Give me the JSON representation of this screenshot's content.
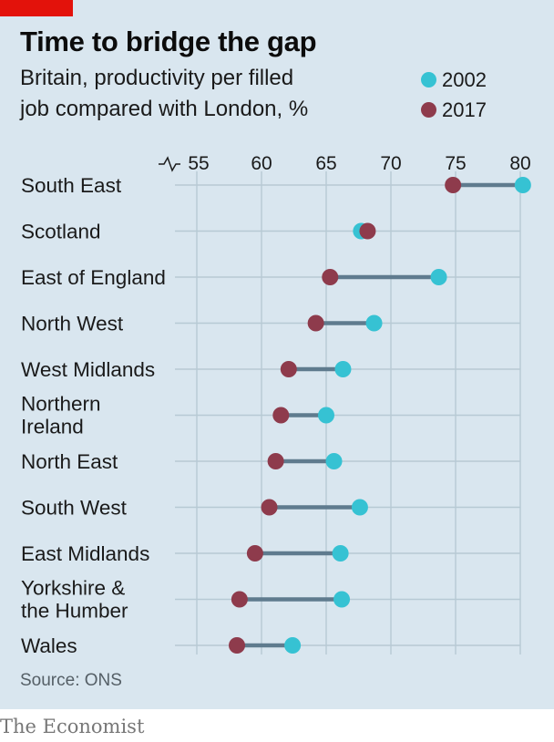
{
  "title": "Time to bridge the gap",
  "subtitle_line1": "Britain, productivity per filled",
  "subtitle_line2": "job compared with London, %",
  "source": "Source: ONS",
  "brand": "The Economist",
  "colors": {
    "background": "#d9e6ef",
    "brand_red": "#e3120b",
    "series_2002": "#36c2d3",
    "series_2017": "#8e3b4c",
    "connector": "#5f7b8e",
    "grid": "#b7c9d4"
  },
  "chart_data": {
    "type": "scatter",
    "variant": "dumbbell",
    "title": "Time to bridge the gap",
    "subtitle": "Britain, productivity per filled job compared with London, %",
    "categories": [
      "South East",
      "Scotland",
      "East of England",
      "North West",
      "West Midlands",
      "Northern Ireland",
      "North East",
      "South West",
      "East Midlands",
      "Yorkshire & the Humber",
      "Wales"
    ],
    "series": [
      {
        "name": "2002",
        "color": "#36c2d3",
        "values": [
          80.2,
          67.7,
          73.7,
          68.7,
          66.3,
          65.0,
          65.6,
          67.6,
          66.1,
          66.2,
          62.4
        ]
      },
      {
        "name": "2017",
        "color": "#8e3b4c",
        "values": [
          74.8,
          68.2,
          65.3,
          64.2,
          62.1,
          61.5,
          61.1,
          60.6,
          59.5,
          58.3,
          58.1
        ]
      }
    ],
    "x_ticks": [
      "55",
      "60",
      "65",
      "70",
      "75",
      "80"
    ],
    "xlim": [
      55,
      80
    ],
    "axis_break": true,
    "grid": true,
    "legend_position": "top-right"
  }
}
